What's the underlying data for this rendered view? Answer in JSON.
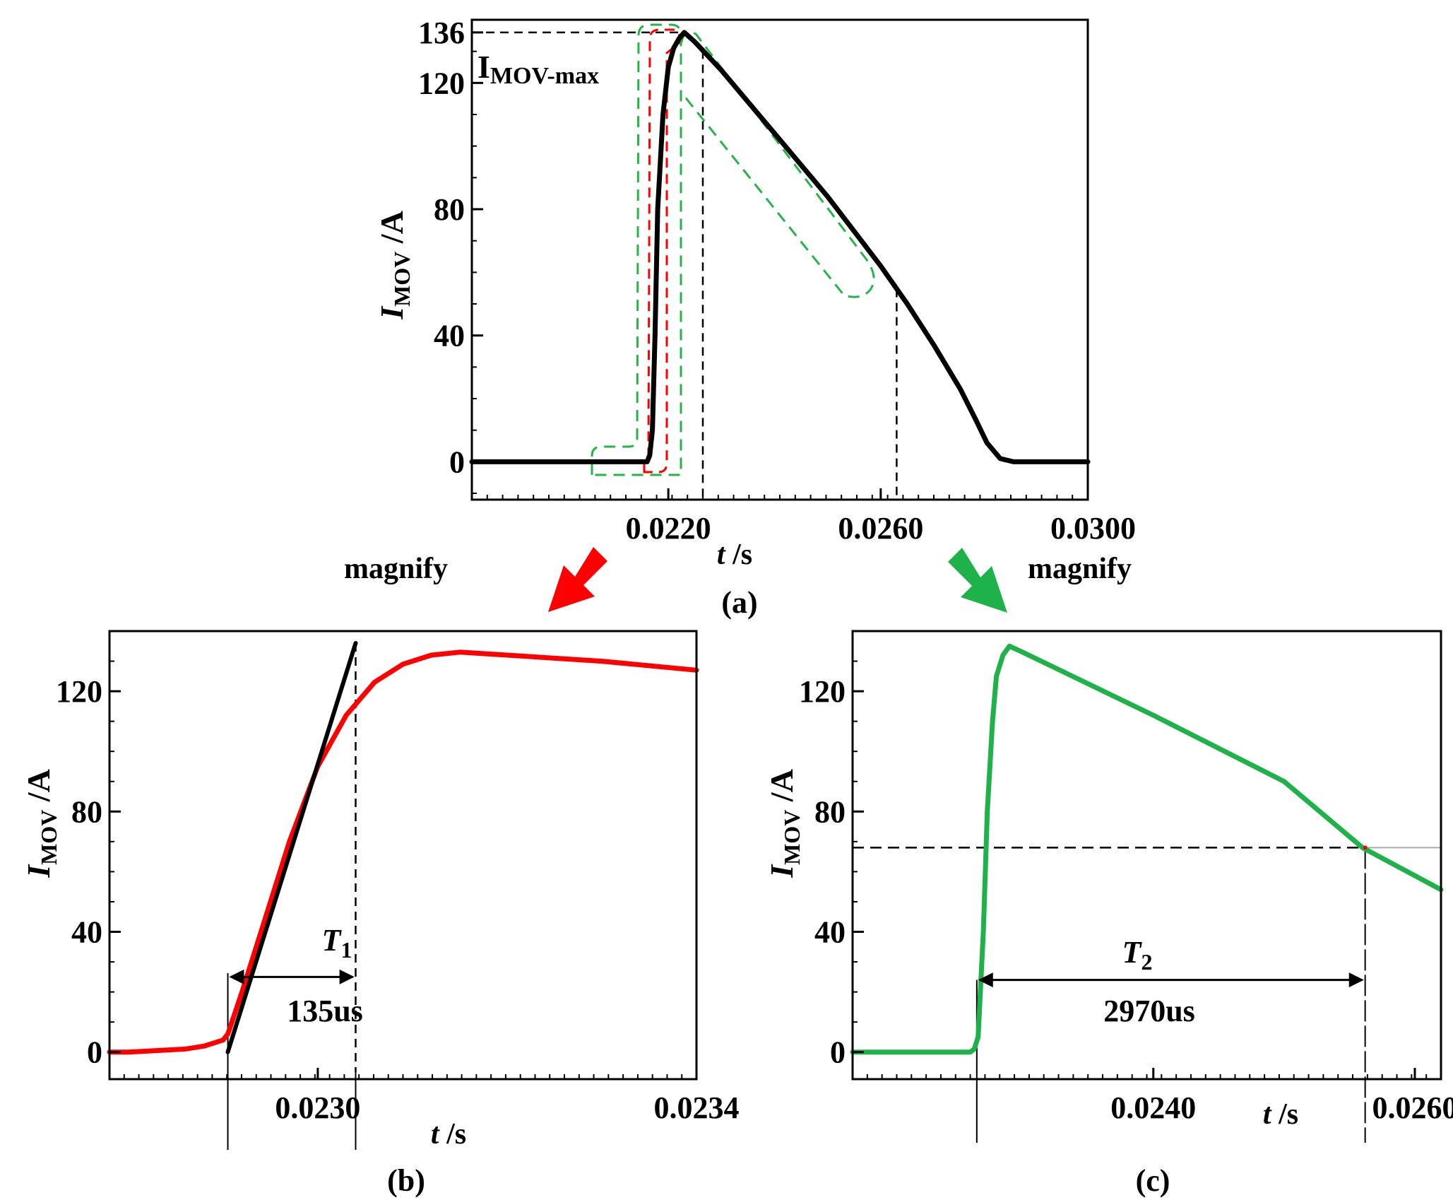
{
  "colors": {
    "axis": "#000000",
    "black_curve": "#000000",
    "red_curve": "#ff0000",
    "green_curve": "#1fb24a",
    "green_dash": "#26b34a",
    "red_dash": "#ff0000",
    "guide": "#000000",
    "light_line": "#aaaaaa"
  },
  "annotations": {
    "magnify_left": "magnify",
    "magnify_right": "magnify",
    "imax_main": "I",
    "imax_sub": "MOV-max"
  },
  "chart_data": [
    {
      "id": "a",
      "type": "line",
      "caption": "(a)",
      "xlabel_italic": "t",
      "xlabel_unit": " /s",
      "ylabel_italic": "I",
      "ylabel_sub": "MOV",
      "ylabel_unit": " /A",
      "xlim": [
        0.0183,
        0.0299
      ],
      "ylim": [
        -12,
        140
      ],
      "xticks": [
        0.022,
        0.026,
        0.03
      ],
      "xtick_labels": [
        "0.0220",
        "0.0260",
        "0.0300"
      ],
      "yticks": [
        0,
        40,
        80,
        120,
        136
      ],
      "ytick_labels": [
        "0",
        "40",
        "80",
        "120",
        "136"
      ],
      "peak": {
        "x": 0.0223,
        "y": 136
      },
      "markers_x": [
        0.02265,
        0.0263
      ],
      "series": [
        {
          "name": "I_MOV",
          "color": "black_curve",
          "x": [
            0.0183,
            0.0216,
            0.02165,
            0.0217,
            0.02175,
            0.0218,
            0.0219,
            0.022,
            0.0221,
            0.0222,
            0.0223,
            0.0225,
            0.023,
            0.0235,
            0.024,
            0.0245,
            0.025,
            0.0255,
            0.026,
            0.0265,
            0.027,
            0.0275,
            0.0278,
            0.028,
            0.02825,
            0.0285,
            0.0299
          ],
          "y": [
            0,
            0,
            2,
            10,
            40,
            80,
            110,
            125,
            131,
            134,
            136,
            133,
            124,
            114,
            104,
            94,
            84,
            73,
            62,
            50,
            37,
            23,
            13,
            6,
            1,
            0,
            0
          ]
        }
      ]
    },
    {
      "id": "b",
      "type": "line",
      "caption": "(b)",
      "xlabel_italic": "t",
      "xlabel_unit": " /s",
      "ylabel_italic": "I",
      "ylabel_sub": "MOV",
      "ylabel_unit": " /A",
      "xlim": [
        0.02278,
        0.0234
      ],
      "ylim": [
        -9,
        140
      ],
      "xticks": [
        0.023,
        0.0234
      ],
      "xtick_labels": [
        "0.0230",
        "0.0234"
      ],
      "yticks": [
        0,
        40,
        80,
        120
      ],
      "ytick_labels": [
        "0",
        "40",
        "80",
        "120"
      ],
      "interval_label": "T",
      "interval_sub": "1",
      "interval_value": "135us",
      "interval_x": [
        0.022905,
        0.02304
      ],
      "interval_y": 25,
      "series": [
        {
          "name": "I_MOV",
          "color": "red_curve",
          "x": [
            0.02278,
            0.0228,
            0.0228,
            0.02286,
            0.02288,
            0.0229,
            0.022905,
            0.02292,
            0.02294,
            0.02297,
            0.023,
            0.02303,
            0.02306,
            0.02309,
            0.02312,
            0.02315,
            0.0232,
            0.0233,
            0.0234
          ],
          "y": [
            0,
            0,
            0,
            1,
            2,
            4,
            6,
            20,
            40,
            70,
            95,
            112,
            123,
            129,
            132,
            133,
            132,
            130,
            127
          ]
        },
        {
          "name": "tangent",
          "color": "black_curve",
          "x": [
            0.022905,
            0.02304
          ],
          "y": [
            0,
            136
          ]
        }
      ]
    },
    {
      "id": "c",
      "type": "line",
      "caption": "(c)",
      "xlabel_italic": "t",
      "xlabel_unit": " /s",
      "ylabel_italic": "I",
      "ylabel_sub": "MOV",
      "ylabel_unit": " /A",
      "xlim": [
        0.0217,
        0.0262
      ],
      "ylim": [
        -9,
        140
      ],
      "xticks": [
        0.024,
        0.026
      ],
      "xtick_labels": [
        "0.0240",
        "0.0260"
      ],
      "yticks": [
        0,
        40,
        80,
        120
      ],
      "ytick_labels": [
        "0",
        "40",
        "80",
        "120"
      ],
      "interval_label": "T",
      "interval_sub": "2",
      "interval_value": "2970us",
      "interval_x": [
        0.02265,
        0.02562
      ],
      "interval_y": 24,
      "half_value_y": 68,
      "series": [
        {
          "name": "I_MOV",
          "color": "green_curve",
          "x": [
            0.0217,
            0.0226,
            0.02263,
            0.02266,
            0.0227,
            0.02273,
            0.02277,
            0.0228,
            0.02285,
            0.0229,
            0.023,
            0.024,
            0.025,
            0.0256,
            0.0262
          ],
          "y": [
            0,
            0,
            1,
            5,
            40,
            80,
            110,
            125,
            132,
            135,
            133,
            112,
            90,
            68,
            54
          ]
        }
      ]
    }
  ]
}
